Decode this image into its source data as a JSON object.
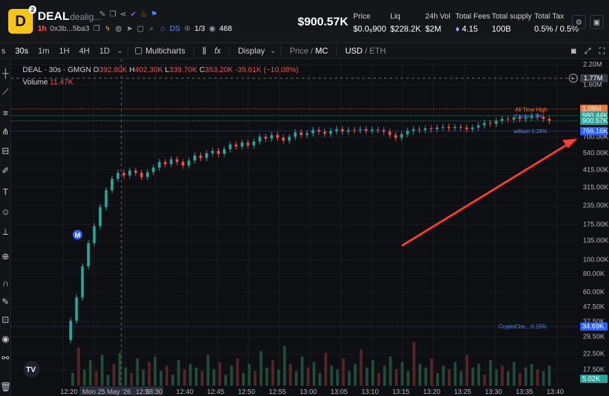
{
  "header": {
    "logo_letter": "D",
    "logo_badge": "2",
    "token_symbol": "DEAL",
    "token_name": "dealig...",
    "timeframe": "1h",
    "address": "0x3b...5ba3",
    "ds_label": "DS",
    "holders_ratio": "1/3",
    "views": "468",
    "price": "$900.57K",
    "stats": [
      {
        "label": "Price",
        "value": "$0.0₉900"
      },
      {
        "label": "Liq",
        "value": "$228.2K"
      },
      {
        "label": "24h Vol",
        "value": "$2M"
      },
      {
        "label": "Total Fees",
        "value": "4.15"
      },
      {
        "label": "Total supply",
        "value": "100B"
      },
      {
        "label": "Total Tax",
        "value": "0.5% / 0.5%"
      }
    ]
  },
  "toolbar": {
    "timeframes": [
      "s",
      "30s",
      "1m",
      "1H",
      "4H",
      "1D"
    ],
    "active_timeframe": "30s",
    "multicharts": "Multicharts",
    "display": "Display",
    "price_label": "Price",
    "mc_label": "MC",
    "usd_label": "USD",
    "eth_label": "ETH"
  },
  "legend": {
    "title": "DEAL · 30s · GMGN",
    "o_label": "O",
    "o": "392.80K",
    "h_label": "H",
    "h": "402.30K",
    "l_label": "L",
    "l": "339.70K",
    "c_label": "C",
    "c": "353.20K",
    "change": "-39.61K (−10.08%)",
    "volume_label": "Volume",
    "volume": "11.47K"
  },
  "chart_data": {
    "type": "candlestick",
    "y_scale": "log",
    "y_ticks": [
      "2.20M",
      "1.60M",
      "980.44K",
      "900.57K",
      "766.16K",
      "700.00K",
      "540.00K",
      "415.00K",
      "315.00K",
      "235.00K",
      "175.00K",
      "135.00K",
      "100.00K",
      "80.00K",
      "60.00K",
      "47.50K",
      "37.50K",
      "29.50K",
      "22.50K",
      "17.50K"
    ],
    "x_ticks": [
      "12:20",
      "Mon 25 May '26",
      "12:28:30",
      "5",
      "12:40",
      "12:45",
      "12:50",
      "12:55",
      "13:00",
      "13:05",
      "13:10",
      "13:15",
      "13:20",
      "13:25",
      "13:30",
      "13:35",
      "13:40"
    ],
    "crosshair_price": "1.77M",
    "price_tags": [
      {
        "label": "1.09M",
        "value": 1090000,
        "color": "#f07a3a"
      },
      {
        "label": "980.44K",
        "value": 980440,
        "color": "#26a69a"
      },
      {
        "label": "900.57K",
        "value": 900570,
        "color": "#26a69a"
      },
      {
        "label": "766.16K",
        "value": 766160,
        "color": "#2962ff"
      },
      {
        "label": "34.69K",
        "value": 34690,
        "color": "#2962ff"
      },
      {
        "label": "5.02K",
        "value": 5020,
        "color": "#26a69a"
      }
    ],
    "annotations": [
      {
        "text": "All Time High",
        "color": "#f07a3a"
      },
      {
        "text": "Cassie 1.5%",
        "color": "#4f8cff"
      },
      {
        "text": "william 0.26%",
        "color": "#4f8cff"
      },
      {
        "text": "CryptoCha... 0.15%",
        "color": "#4f8cff"
      }
    ],
    "migration_marker": "M",
    "candles": [
      {
        "o": 28,
        "c": 38
      },
      {
        "o": 38,
        "c": 55
      },
      {
        "o": 55,
        "c": 90
      },
      {
        "o": 90,
        "c": 130
      },
      {
        "o": 130,
        "c": 170
      },
      {
        "o": 170,
        "c": 230
      },
      {
        "o": 230,
        "c": 300
      },
      {
        "o": 300,
        "c": 360
      },
      {
        "o": 360,
        "c": 395
      },
      {
        "o": 395,
        "c": 380
      },
      {
        "o": 380,
        "c": 410
      },
      {
        "o": 410,
        "c": 395
      },
      {
        "o": 395,
        "c": 370
      },
      {
        "o": 370,
        "c": 400
      },
      {
        "o": 400,
        "c": 430
      },
      {
        "o": 430,
        "c": 470
      },
      {
        "o": 470,
        "c": 455
      },
      {
        "o": 455,
        "c": 490
      },
      {
        "o": 490,
        "c": 470
      },
      {
        "o": 470,
        "c": 445
      },
      {
        "o": 445,
        "c": 480
      },
      {
        "o": 480,
        "c": 520
      },
      {
        "o": 520,
        "c": 500
      },
      {
        "o": 500,
        "c": 540
      },
      {
        "o": 540,
        "c": 560
      },
      {
        "o": 560,
        "c": 535
      },
      {
        "o": 535,
        "c": 575
      },
      {
        "o": 575,
        "c": 620
      },
      {
        "o": 620,
        "c": 600
      },
      {
        "o": 600,
        "c": 640
      },
      {
        "o": 640,
        "c": 610
      },
      {
        "o": 610,
        "c": 650
      },
      {
        "o": 650,
        "c": 700
      },
      {
        "o": 700,
        "c": 680
      },
      {
        "o": 680,
        "c": 720
      },
      {
        "o": 720,
        "c": 690
      },
      {
        "o": 690,
        "c": 660
      },
      {
        "o": 660,
        "c": 700
      },
      {
        "o": 700,
        "c": 750
      },
      {
        "o": 750,
        "c": 720
      },
      {
        "o": 720,
        "c": 740
      },
      {
        "o": 740,
        "c": 780
      },
      {
        "o": 780,
        "c": 760
      },
      {
        "o": 760,
        "c": 735
      },
      {
        "o": 735,
        "c": 770
      },
      {
        "o": 770,
        "c": 790
      },
      {
        "o": 790,
        "c": 760
      },
      {
        "o": 760,
        "c": 780
      },
      {
        "o": 780,
        "c": 775
      },
      {
        "o": 775,
        "c": 790
      },
      {
        "o": 790,
        "c": 770
      },
      {
        "o": 770,
        "c": 785
      },
      {
        "o": 785,
        "c": 780
      },
      {
        "o": 780,
        "c": 760
      },
      {
        "o": 760,
        "c": 720
      },
      {
        "o": 720,
        "c": 690
      },
      {
        "o": 690,
        "c": 730
      },
      {
        "o": 730,
        "c": 770
      },
      {
        "o": 770,
        "c": 790
      },
      {
        "o": 790,
        "c": 780
      },
      {
        "o": 780,
        "c": 800
      },
      {
        "o": 800,
        "c": 790
      },
      {
        "o": 790,
        "c": 810
      },
      {
        "o": 810,
        "c": 820
      },
      {
        "o": 820,
        "c": 805
      },
      {
        "o": 805,
        "c": 820
      },
      {
        "o": 820,
        "c": 810
      },
      {
        "o": 810,
        "c": 790
      },
      {
        "o": 790,
        "c": 810
      },
      {
        "o": 810,
        "c": 840
      },
      {
        "o": 840,
        "c": 870
      },
      {
        "o": 870,
        "c": 860
      },
      {
        "o": 860,
        "c": 900
      },
      {
        "o": 900,
        "c": 930
      },
      {
        "o": 930,
        "c": 920
      },
      {
        "o": 920,
        "c": 950
      },
      {
        "o": 950,
        "c": 930
      },
      {
        "o": 930,
        "c": 945
      },
      {
        "o": 945,
        "c": 975
      },
      {
        "o": 975,
        "c": 960
      },
      {
        "o": 960,
        "c": 930
      },
      {
        "o": 930,
        "c": 900
      }
    ],
    "volumes": [
      7,
      21,
      9,
      14,
      8,
      17,
      6,
      12,
      18,
      10,
      7,
      15,
      9,
      13,
      16,
      8,
      11,
      6,
      14,
      9,
      12,
      10,
      8,
      17,
      9,
      13,
      6,
      11,
      15,
      7,
      12,
      8,
      19,
      10,
      14,
      9,
      22,
      12,
      8,
      16,
      10,
      13,
      7,
      18,
      11,
      9,
      15,
      8,
      12,
      20,
      10,
      14,
      7,
      11,
      16,
      9,
      13,
      8,
      24,
      12,
      10,
      15,
      7,
      11,
      9,
      13,
      8,
      17,
      10,
      12,
      6,
      14,
      9,
      11,
      8,
      13,
      7,
      10,
      12,
      9,
      8,
      11
    ],
    "volume_axis_max": 40
  }
}
